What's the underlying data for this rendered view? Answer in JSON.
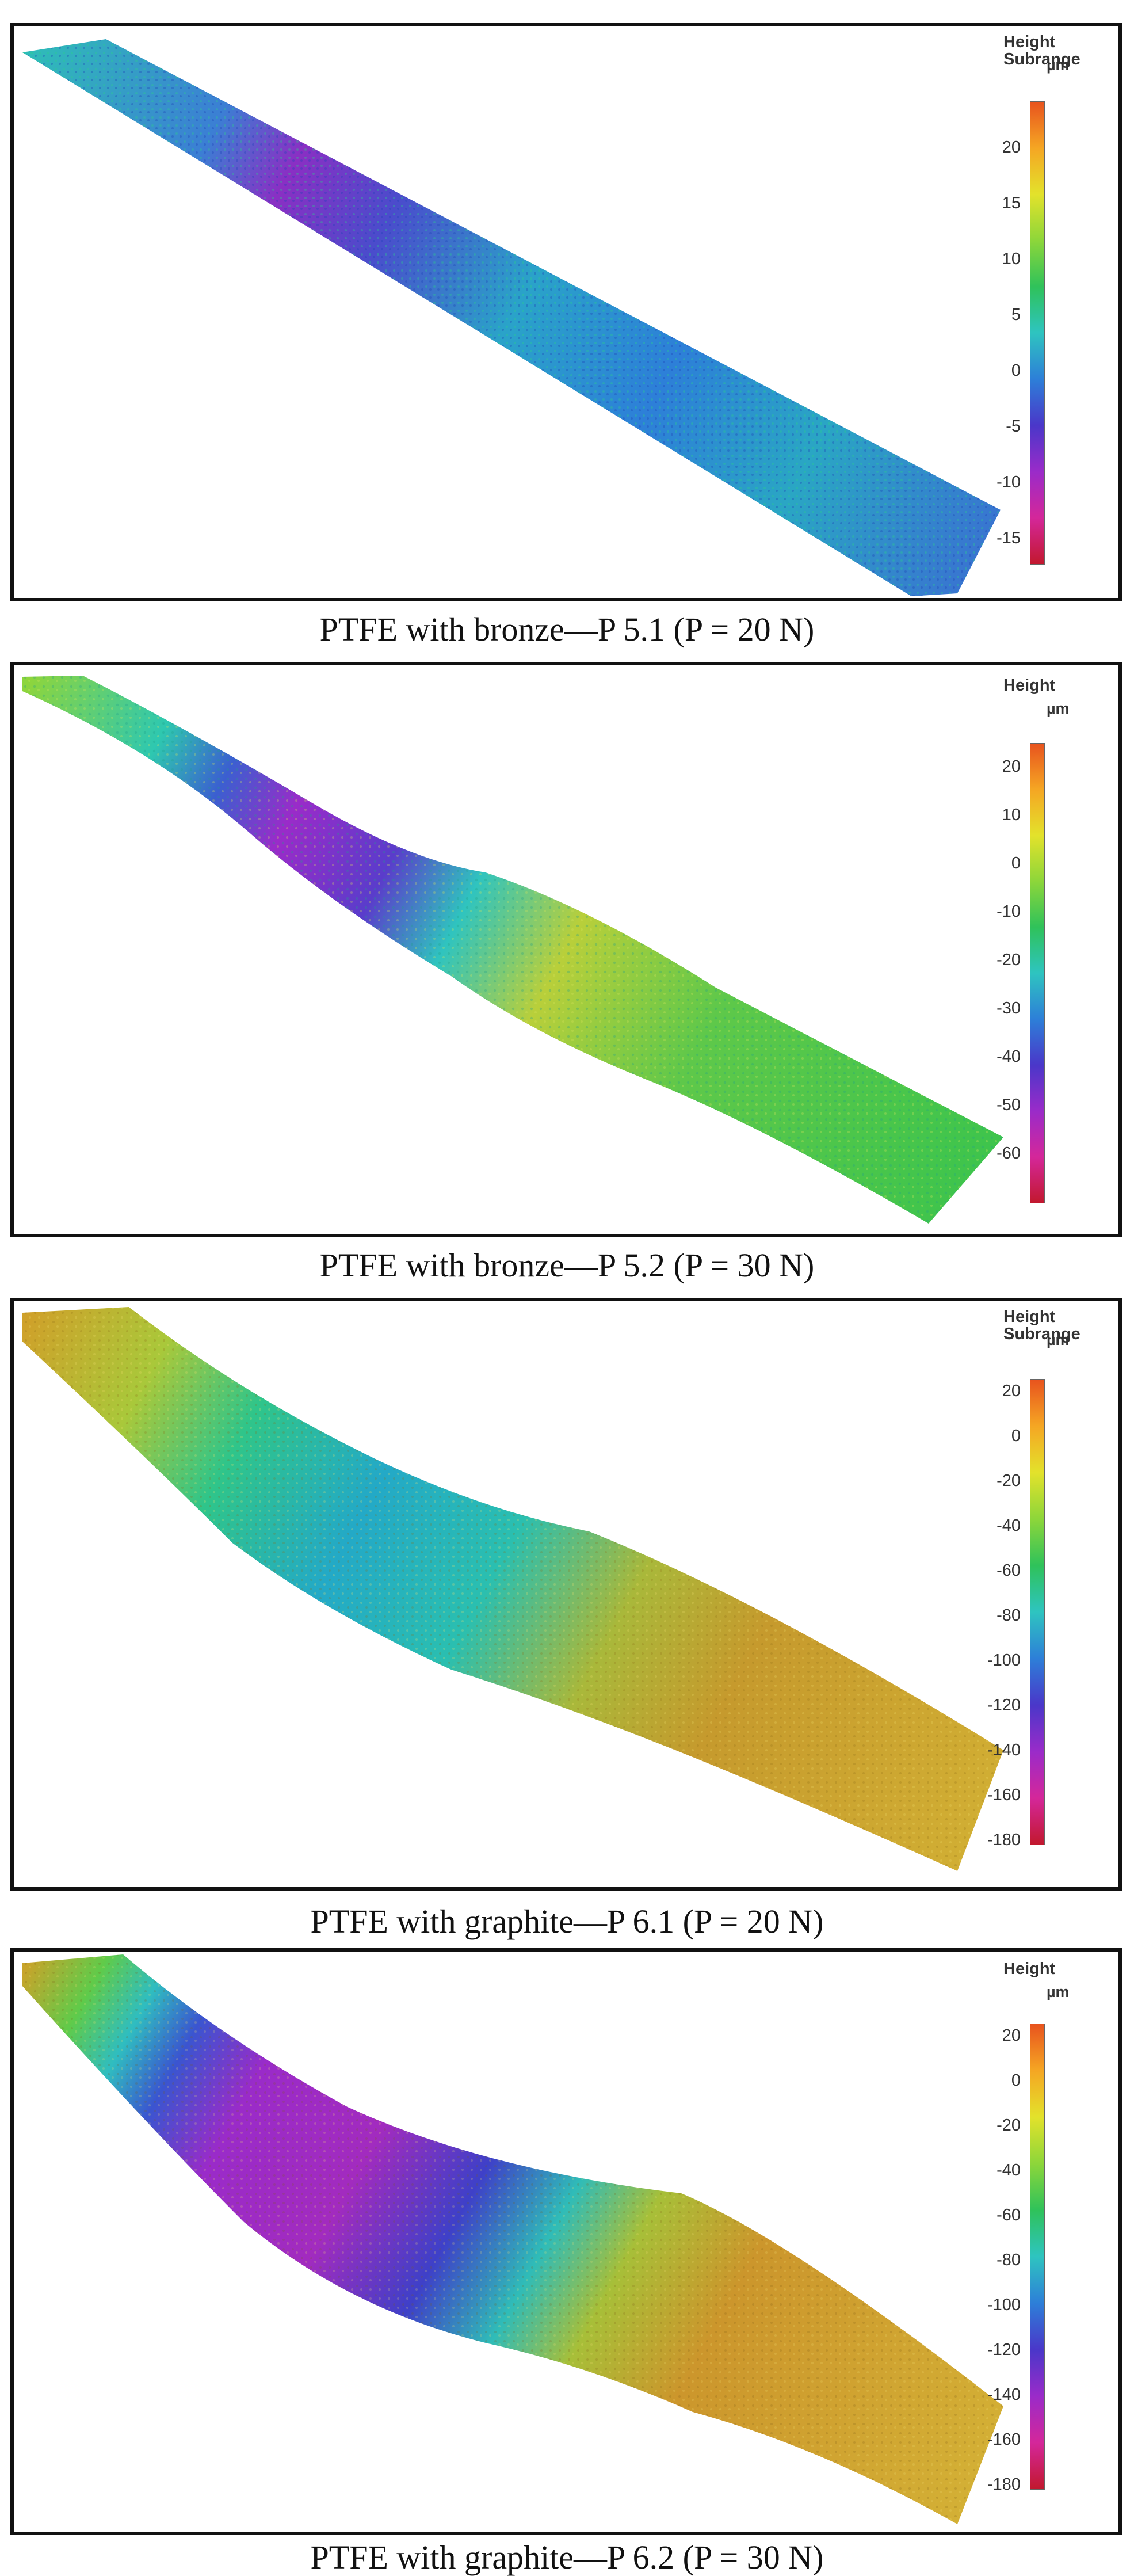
{
  "panels": [
    {
      "caption": "PTFE with bronze—P 5.1 (P = 20 N)",
      "legend_title": "Height",
      "legend_subtitle": "Subrange",
      "unit": "µm",
      "ticks": [
        "20",
        "15",
        "10",
        "5",
        "0",
        "-5",
        "-10",
        "-15"
      ],
      "colorbar_colors": [
        "#e8531e",
        "#f5a623",
        "#e3e22b",
        "#8dd63a",
        "#2fc25a",
        "#2ec4c0",
        "#2d7fd8",
        "#4a37c9",
        "#9a2bc9",
        "#d4279a",
        "#c2182e"
      ]
    },
    {
      "caption": "PTFE with bronze—P 5.2 (P = 30 N)",
      "legend_title": "Height",
      "legend_subtitle": "",
      "unit": "µm",
      "ticks": [
        "20",
        "10",
        "0",
        "-10",
        "-20",
        "-30",
        "-40",
        "-50",
        "-60"
      ],
      "colorbar_colors": [
        "#e8531e",
        "#f5a623",
        "#e3e22b",
        "#8dd63a",
        "#2fc25a",
        "#2ec4c0",
        "#2d7fd8",
        "#4a37c9",
        "#9a2bc9",
        "#d4279a",
        "#c2182e"
      ]
    },
    {
      "caption": "PTFE with graphite—P 6.1 (P = 20 N)",
      "legend_title": "Height",
      "legend_subtitle": "Subrange",
      "unit": "µm",
      "ticks": [
        "20",
        "0",
        "-20",
        "-40",
        "-60",
        "-80",
        "-100",
        "-120",
        "-140",
        "-160",
        "-180"
      ],
      "colorbar_colors": [
        "#e8531e",
        "#f5a623",
        "#e3e22b",
        "#8dd63a",
        "#2fc25a",
        "#2ec4c0",
        "#2d7fd8",
        "#4a37c9",
        "#9a2bc9",
        "#d4279a",
        "#c2182e"
      ]
    },
    {
      "caption": "PTFE with graphite—P 6.2 (P = 30 N)",
      "legend_title": "Height",
      "legend_subtitle": "",
      "unit": "µm",
      "ticks": [
        "20",
        "0",
        "-20",
        "-40",
        "-60",
        "-80",
        "-100",
        "-120",
        "-140",
        "-160",
        "-180"
      ],
      "colorbar_colors": [
        "#e8531e",
        "#f5a623",
        "#e3e22b",
        "#8dd63a",
        "#2fc25a",
        "#2ec4c0",
        "#2d7fd8",
        "#4a37c9",
        "#9a2bc9",
        "#d4279a",
        "#c2182e"
      ]
    }
  ]
}
